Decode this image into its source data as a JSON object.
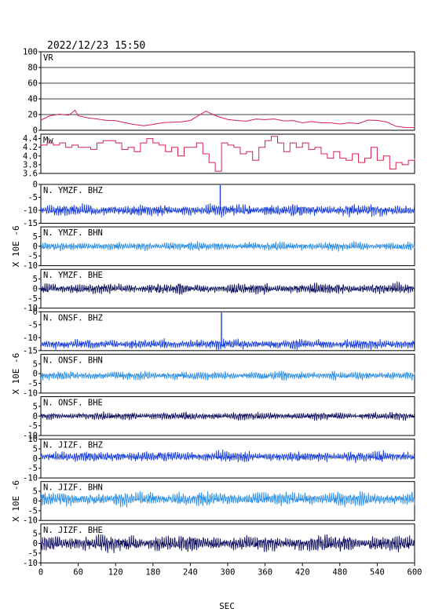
{
  "header": {
    "timestamp": "2022/12/23  15:50"
  },
  "chart_data": {
    "type": "line",
    "x_axis": {
      "label": "SEC",
      "range": [
        0,
        600
      ],
      "ticks": [
        "0",
        "60",
        "120",
        "180",
        "240",
        "300",
        "360",
        "420",
        "480",
        "540",
        "600"
      ]
    },
    "colors": {
      "vr": "#d6204f",
      "mw": "#d6204f",
      "bhz": "#1a3fd9",
      "bhn": "#2b8fe6",
      "bhe": "#101060",
      "axis": "#000000",
      "grid": "#000000"
    },
    "vr_panel": {
      "name": "VR",
      "ylim": [
        0,
        100
      ],
      "yticks": [
        "100",
        "80",
        "60",
        "40",
        "20",
        "0"
      ],
      "grid": true,
      "x": [
        0,
        15,
        30,
        45,
        55,
        60,
        75,
        90,
        105,
        120,
        135,
        150,
        165,
        180,
        195,
        210,
        225,
        240,
        255,
        265,
        275,
        285,
        300,
        315,
        330,
        345,
        360,
        375,
        390,
        405,
        420,
        435,
        450,
        465,
        480,
        495,
        510,
        525,
        540,
        555,
        570,
        585,
        600
      ],
      "y": [
        13,
        18,
        20,
        19,
        26,
        19,
        16,
        14,
        12,
        12,
        10,
        8,
        6,
        7,
        9,
        10,
        11,
        13,
        20,
        24,
        20,
        17,
        14,
        13,
        12,
        14,
        13,
        14,
        12,
        13,
        10,
        11,
        9,
        9,
        8,
        10,
        9,
        13,
        12,
        10,
        5,
        4,
        4
      ]
    },
    "mw_panel": {
      "name": "Mw",
      "ylim": [
        3.6,
        4.5
      ],
      "yticks": [
        "4.4",
        "4.2",
        "4.0",
        "3.8",
        "3.6"
      ],
      "x": [
        0,
        10,
        20,
        30,
        40,
        50,
        60,
        70,
        80,
        90,
        100,
        110,
        120,
        130,
        140,
        150,
        160,
        170,
        180,
        190,
        200,
        210,
        220,
        230,
        240,
        250,
        260,
        270,
        280,
        290,
        300,
        310,
        320,
        330,
        340,
        350,
        360,
        370,
        380,
        390,
        400,
        410,
        420,
        430,
        440,
        450,
        460,
        470,
        480,
        490,
        500,
        510,
        520,
        530,
        540,
        550,
        560,
        570,
        580,
        590,
        600
      ],
      "y": [
        4.25,
        4.3,
        4.25,
        4.3,
        4.2,
        4.25,
        4.2,
        4.2,
        4.15,
        4.3,
        4.35,
        4.35,
        4.3,
        4.15,
        4.2,
        4.1,
        4.3,
        4.4,
        4.3,
        4.25,
        4.1,
        4.2,
        4.0,
        4.2,
        4.2,
        4.3,
        4.05,
        3.85,
        3.65,
        4.3,
        4.25,
        4.2,
        4.05,
        4.1,
        3.9,
        4.2,
        4.35,
        4.45,
        4.3,
        4.1,
        4.3,
        4.2,
        4.3,
        4.15,
        4.2,
        4.05,
        3.95,
        4.1,
        3.95,
        3.9,
        4.05,
        3.85,
        3.95,
        4.2,
        3.9,
        4.0,
        3.7,
        3.85,
        3.8,
        3.9,
        3.95
      ]
    },
    "waveform_ylabel": "X 10E -6",
    "groups": [
      {
        "station": "YMZF",
        "traces": [
          {
            "name": "N. YMZF. BHZ",
            "component": "BHZ",
            "ylim": [
              -15,
              0
            ],
            "yticks": [
              "0",
              "-5",
              "-10",
              "-15"
            ],
            "baseline": -10,
            "amp": 1.6,
            "spikes": [
              {
                "x": 288,
                "top": 0
              }
            ]
          },
          {
            "name": "N. YMZF. BHN",
            "component": "BHN",
            "ylim": [
              -10,
              10
            ],
            "yticks": [
              "5",
              "0",
              "-5",
              "-10"
            ],
            "baseline": 0,
            "amp": 1.6,
            "spikes": []
          },
          {
            "name": "N. YMZF. BHE",
            "component": "BHE",
            "ylim": [
              -10,
              10
            ],
            "yticks": [
              "5",
              "0",
              "-5",
              "-10"
            ],
            "baseline": 0,
            "amp": 2.0,
            "spikes": []
          }
        ]
      },
      {
        "station": "ONSF",
        "traces": [
          {
            "name": "N. ONSF. BHZ",
            "component": "BHZ",
            "ylim": [
              -15,
              0
            ],
            "yticks": [
              "0",
              "-5",
              "-10",
              "-15"
            ],
            "baseline": -12.5,
            "amp": 1.4,
            "spikes": [
              {
                "x": 290,
                "top": 0
              }
            ]
          },
          {
            "name": "N. ONSF. BHN",
            "component": "BHN",
            "ylim": [
              -10,
              10
            ],
            "yticks": [
              "5",
              "0",
              "-5",
              "-10"
            ],
            "baseline": -1,
            "amp": 1.6,
            "spikes": []
          },
          {
            "name": "N. ONSF. BHE",
            "component": "BHE",
            "ylim": [
              -10,
              10
            ],
            "yticks": [
              "5",
              "0",
              "-5",
              "-10"
            ],
            "baseline": 0,
            "amp": 1.4,
            "spikes": []
          }
        ]
      },
      {
        "station": "JIZF",
        "traces": [
          {
            "name": "N. JIZF. BHZ",
            "component": "BHZ",
            "ylim": [
              -10,
              10
            ],
            "yticks": [
              "10",
              "5",
              "0",
              "-5",
              "-10"
            ],
            "baseline": 1,
            "amp": 2.0,
            "spikes": []
          },
          {
            "name": "N. JIZF. BHN",
            "component": "BHN",
            "ylim": [
              -10,
              10
            ],
            "yticks": [
              "5",
              "0",
              "-5",
              "-10"
            ],
            "baseline": 1,
            "amp": 2.6,
            "spikes": []
          },
          {
            "name": "N. JIZF. BHE",
            "component": "BHE",
            "ylim": [
              -10,
              10
            ],
            "yticks": [
              "5",
              "0",
              "-5",
              "-10"
            ],
            "baseline": 0,
            "amp": 3.0,
            "spikes": []
          }
        ]
      }
    ]
  }
}
